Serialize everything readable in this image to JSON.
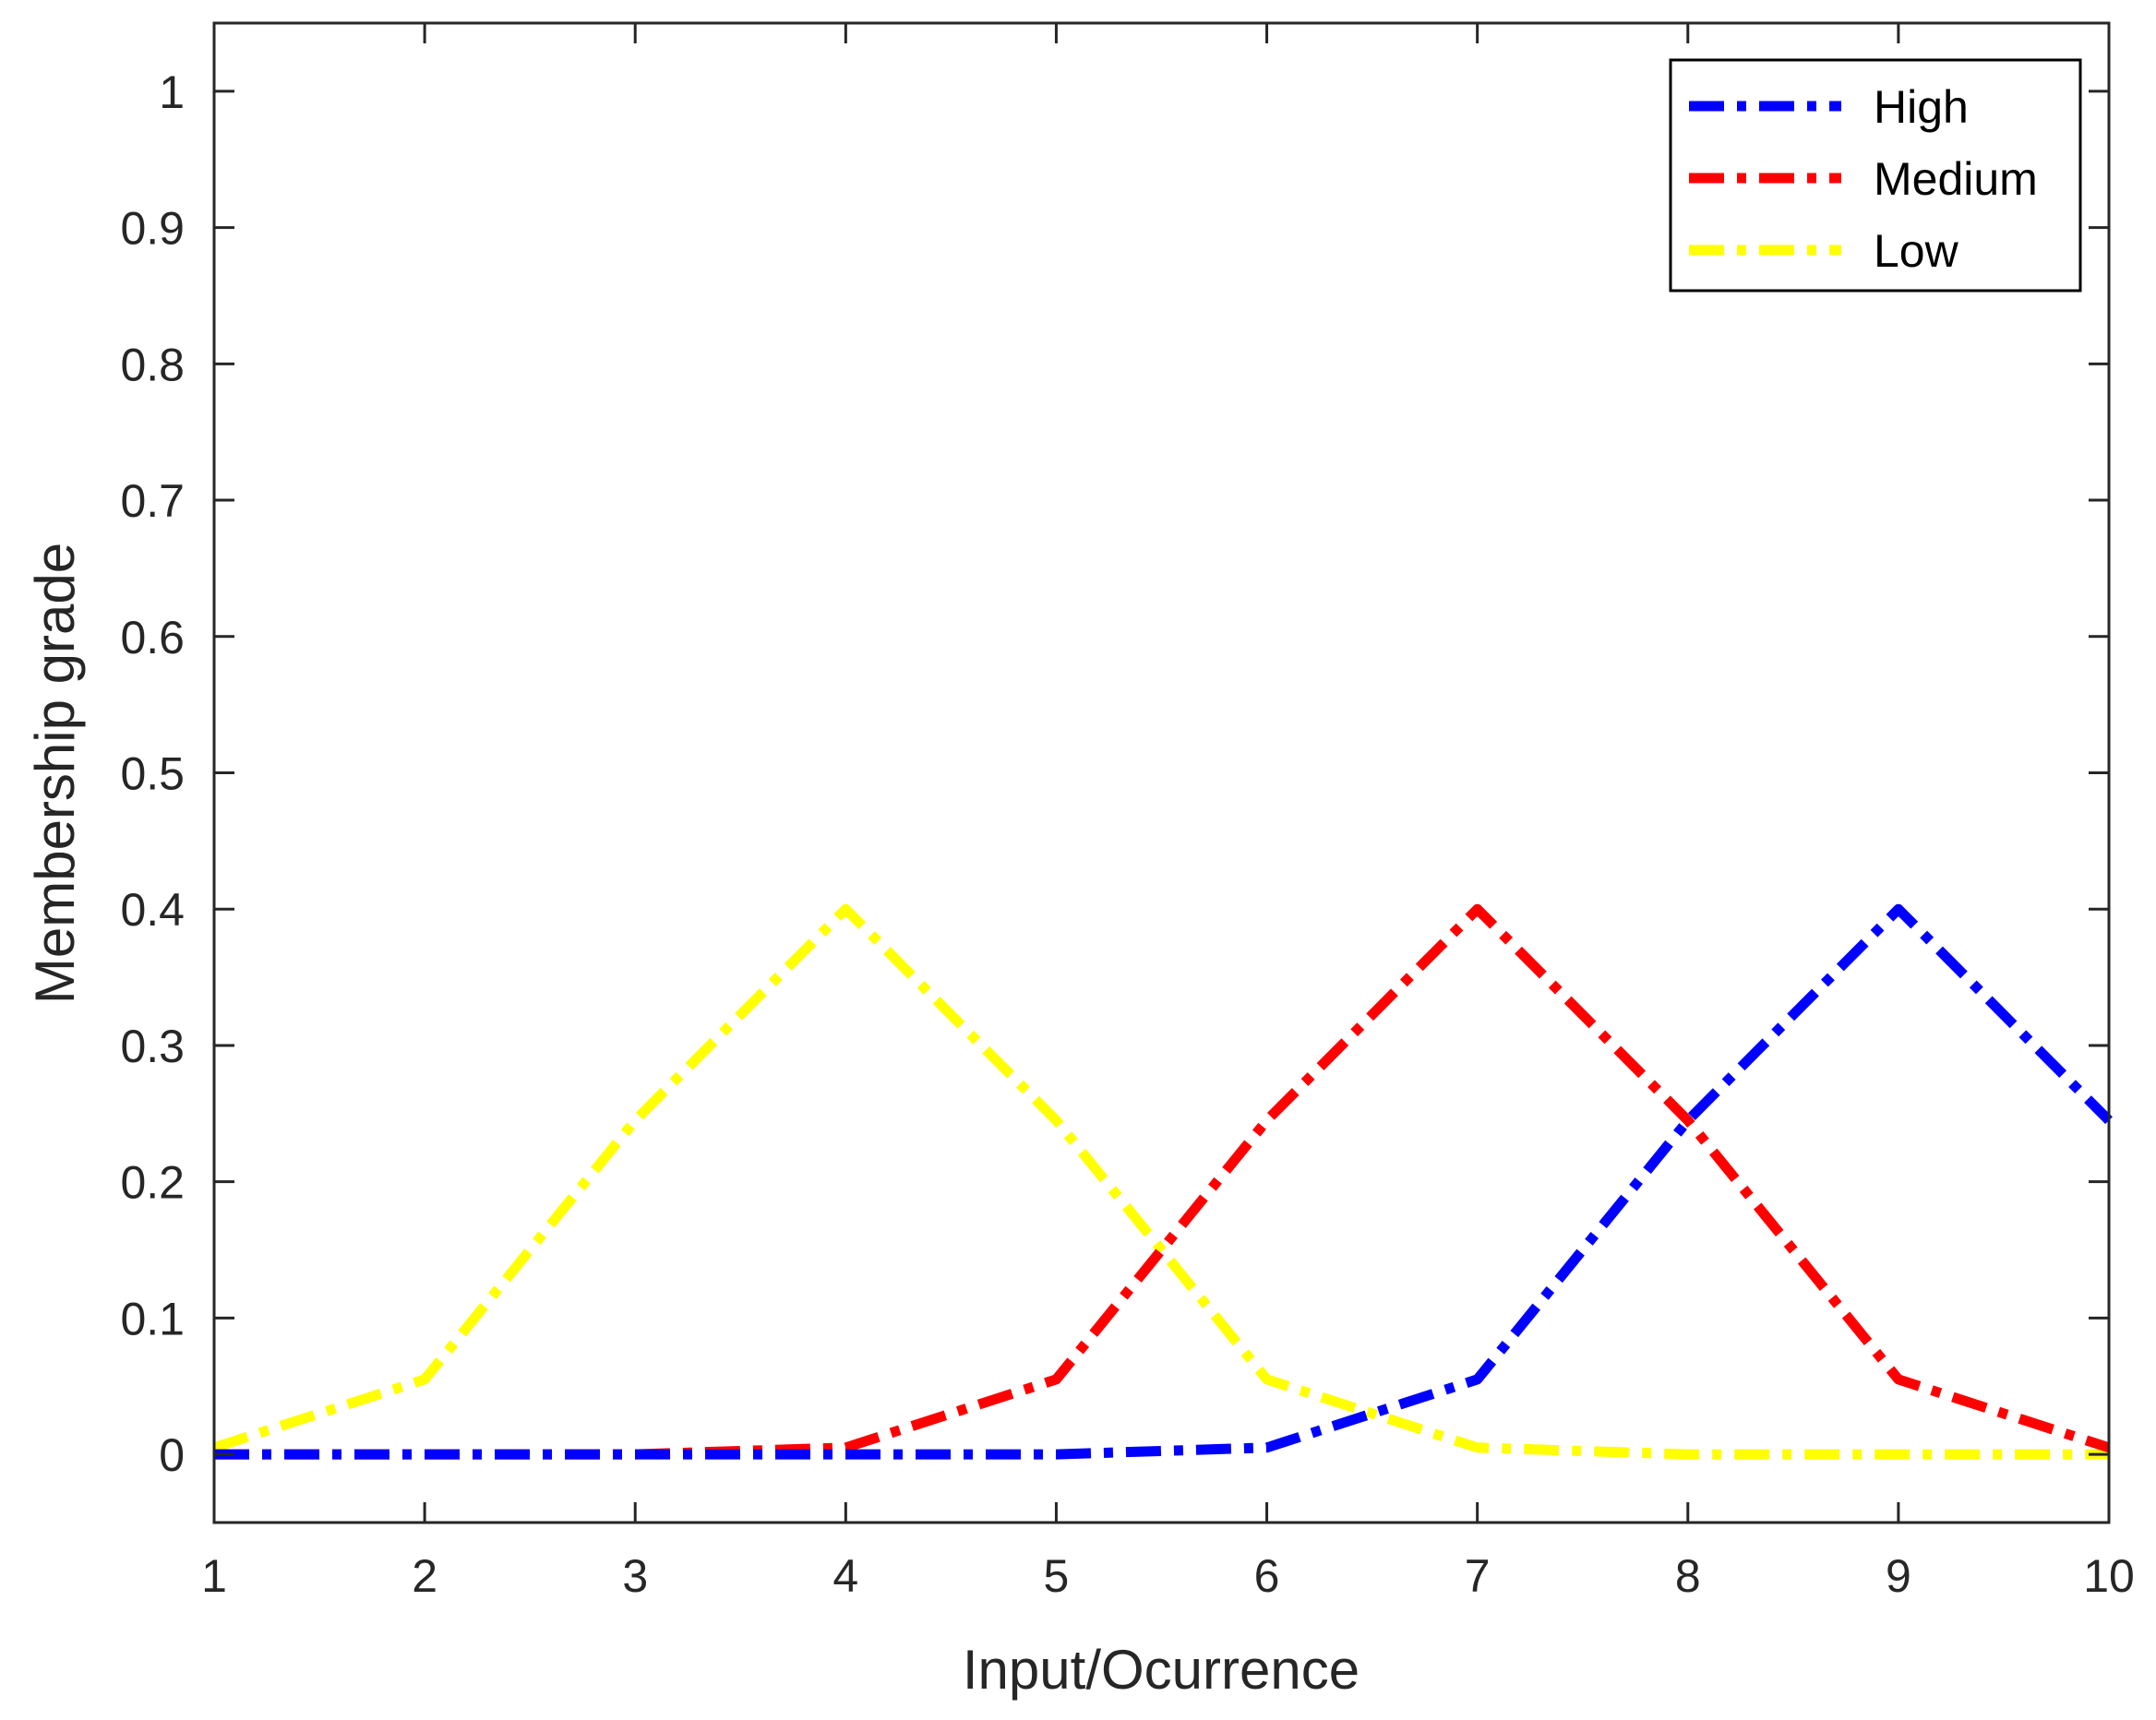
{
  "chart_data": {
    "type": "line",
    "title": "",
    "xlabel": "Input/Ocurrence",
    "ylabel": "Membership grade",
    "xlim": [
      1,
      10
    ],
    "ylim": [
      -0.05,
      1.05
    ],
    "x_ticks": [
      1,
      2,
      3,
      4,
      5,
      6,
      7,
      8,
      9,
      10
    ],
    "x_tick_labels": [
      "1",
      "2",
      "3",
      "4",
      "5",
      "6",
      "7",
      "8",
      "9",
      "10"
    ],
    "y_ticks": [
      0,
      0.1,
      0.2,
      0.3,
      0.4,
      0.5,
      0.6,
      0.7,
      0.8,
      0.9,
      1
    ],
    "y_tick_labels": [
      "0",
      "0.1",
      "0.2",
      "0.3",
      "0.4",
      "0.5",
      "0.6",
      "0.7",
      "0.8",
      "0.9",
      "1"
    ],
    "grid": false,
    "legend_position": "top-right",
    "x": [
      1,
      2,
      3,
      4,
      5,
      6,
      7,
      8,
      9,
      10
    ],
    "series": [
      {
        "name": "High",
        "color": "#0000ff",
        "line_style": "dash-dot",
        "values": [
          0,
          0,
          0,
          0,
          0,
          0.005,
          0.055,
          0.245,
          0.4,
          0.245
        ]
      },
      {
        "name": "Medium",
        "color": "#ff0000",
        "line_style": "dash-dot",
        "values": [
          0,
          0,
          0,
          0.005,
          0.055,
          0.245,
          0.4,
          0.245,
          0.055,
          0.005
        ]
      },
      {
        "name": "Low",
        "color": "#ffff00",
        "line_style": "dash-dot",
        "values": [
          0.005,
          0.055,
          0.245,
          0.4,
          0.245,
          0.055,
          0.005,
          0,
          0,
          0
        ]
      }
    ]
  }
}
